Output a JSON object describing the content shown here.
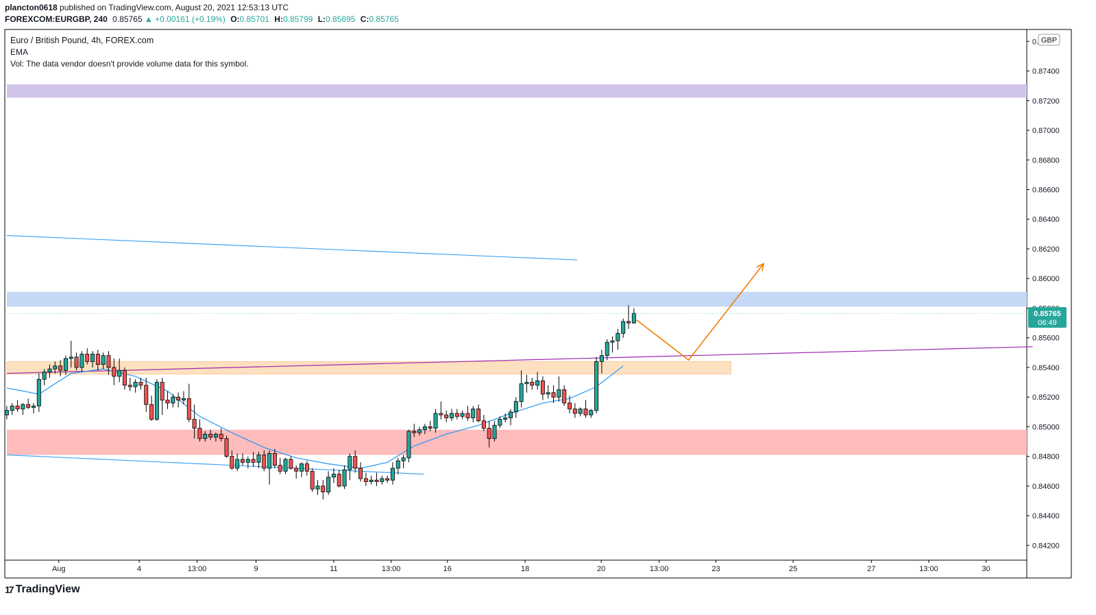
{
  "header": {
    "user": "plancton0618",
    "published_text": "published on TradingView.com, August 20, 2021 12:53:13 UTC",
    "symbol": "FOREXCOM:EURGBP, 240",
    "last": "0.85765",
    "change": "▲ +0.00161 (+0.19%)",
    "o_label": "O:",
    "o": "0.85701",
    "h_label": "H:",
    "h": "0.85799",
    "l_label": "L:",
    "l": "0.85695",
    "c_label": "C:",
    "c": "0.85765"
  },
  "legend": {
    "title": "Euro / British Pound, 4h, FOREX.com",
    "ema": "EMA",
    "vol": "Vol: The data vendor doesn't provide volume data for this symbol."
  },
  "price_scale": {
    "currency": "GBP",
    "current_price": "0.85765",
    "countdown": "06:49"
  },
  "footer": {
    "brand": "TradingView"
  },
  "colors": {
    "up": "#26a69a",
    "down": "#ef5350",
    "ema": "#2196f3",
    "trendline": "#42a5f5",
    "purple_line": "#9c27b0",
    "projection": "#f57c00",
    "zone_purple": "#d1c4e9",
    "zone_blue": "#c5d9f7",
    "zone_orange": "#fde0c0",
    "zone_red": "#ffbcbc"
  },
  "chart_data": {
    "type": "candlestick",
    "ylim": [
      0.841,
      0.8768
    ],
    "x_ticks": [
      {
        "label": "Aug",
        "x": 9.7
      },
      {
        "label": "4",
        "x": 24.7
      },
      {
        "label": "13:00",
        "x": 35.5
      },
      {
        "label": "9",
        "x": 46.5
      },
      {
        "label": "11",
        "x": 61
      },
      {
        "label": "13:00",
        "x": 71.7
      },
      {
        "label": "16",
        "x": 82.2
      },
      {
        "label": "18",
        "x": 96.7
      },
      {
        "label": "20",
        "x": 110.9
      },
      {
        "label": "13:00",
        "x": 121.7
      },
      {
        "label": "23",
        "x": 132.3
      },
      {
        "label": "25",
        "x": 146.7
      },
      {
        "label": "27",
        "x": 161.3
      },
      {
        "label": "13:00",
        "x": 172
      },
      {
        "label": "30",
        "x": 182.7
      }
    ],
    "y_ticks": [
      "0.87600",
      "0.87400",
      "0.87200",
      "0.87000",
      "0.86800",
      "0.86600",
      "0.86400",
      "0.86200",
      "0.86000",
      "0.85800",
      "0.85600",
      "0.85400",
      "0.85200",
      "0.85000",
      "0.84800",
      "0.84600",
      "0.84400",
      "0.84200"
    ],
    "y_tick_values": [
      0.876,
      0.874,
      0.872,
      0.87,
      0.868,
      0.866,
      0.864,
      0.862,
      0.86,
      0.858,
      0.856,
      0.854,
      0.852,
      0.85,
      0.848,
      0.846,
      0.844,
      0.842
    ],
    "candles": [
      [
        0.8508,
        0.8514,
        0.8505,
        0.8511
      ],
      [
        0.8511,
        0.8516,
        0.8508,
        0.8514
      ],
      [
        0.8514,
        0.8518,
        0.851,
        0.8512
      ],
      [
        0.8512,
        0.8516,
        0.8508,
        0.8515
      ],
      [
        0.8515,
        0.8519,
        0.8512,
        0.8513
      ],
      [
        0.8513,
        0.8516,
        0.8509,
        0.8514
      ],
      [
        0.8514,
        0.8536,
        0.851,
        0.8532
      ],
      [
        0.8532,
        0.8539,
        0.8528,
        0.8537
      ],
      [
        0.8537,
        0.8542,
        0.8533,
        0.8539
      ],
      [
        0.8539,
        0.8544,
        0.8536,
        0.8541
      ],
      [
        0.8541,
        0.8545,
        0.8534,
        0.8538
      ],
      [
        0.8538,
        0.8548,
        0.8535,
        0.8546
      ],
      [
        0.8546,
        0.8558,
        0.854,
        0.8547
      ],
      [
        0.8547,
        0.855,
        0.8538,
        0.854
      ],
      [
        0.854,
        0.8551,
        0.8537,
        0.8549
      ],
      [
        0.8549,
        0.8553,
        0.8542,
        0.8544
      ],
      [
        0.8544,
        0.8551,
        0.854,
        0.8549
      ],
      [
        0.8549,
        0.8552,
        0.8538,
        0.8542
      ],
      [
        0.8542,
        0.855,
        0.8539,
        0.8548
      ],
      [
        0.8548,
        0.8551,
        0.8535,
        0.854
      ],
      [
        0.854,
        0.8546,
        0.8528,
        0.8534
      ],
      [
        0.8534,
        0.8546,
        0.853,
        0.8538
      ],
      [
        0.8538,
        0.854,
        0.8525,
        0.8528
      ],
      [
        0.8528,
        0.8533,
        0.8524,
        0.8527
      ],
      [
        0.8527,
        0.8532,
        0.8523,
        0.853
      ],
      [
        0.853,
        0.8533,
        0.8525,
        0.8528
      ],
      [
        0.8528,
        0.8533,
        0.851,
        0.8515
      ],
      [
        0.8515,
        0.8521,
        0.8504,
        0.8505
      ],
      [
        0.8505,
        0.8532,
        0.8504,
        0.853
      ],
      [
        0.853,
        0.8533,
        0.8508,
        0.8518
      ],
      [
        0.8518,
        0.8524,
        0.8512,
        0.8516
      ],
      [
        0.8516,
        0.8522,
        0.8513,
        0.852
      ],
      [
        0.852,
        0.8523,
        0.8513,
        0.8518
      ],
      [
        0.8518,
        0.8524,
        0.8515,
        0.8519
      ],
      [
        0.8519,
        0.8529,
        0.8503,
        0.8505
      ],
      [
        0.8505,
        0.8515,
        0.8492,
        0.8499
      ],
      [
        0.8499,
        0.8505,
        0.849,
        0.8492
      ],
      [
        0.8492,
        0.8497,
        0.849,
        0.8495
      ],
      [
        0.8495,
        0.8498,
        0.8491,
        0.8493
      ],
      [
        0.8493,
        0.8496,
        0.849,
        0.8495
      ],
      [
        0.8495,
        0.8499,
        0.849,
        0.8492
      ],
      [
        0.8492,
        0.8494,
        0.8479,
        0.848
      ],
      [
        0.848,
        0.8484,
        0.8471,
        0.8472
      ],
      [
        0.8472,
        0.8482,
        0.847,
        0.8478
      ],
      [
        0.8478,
        0.8482,
        0.8474,
        0.8476
      ],
      [
        0.8476,
        0.848,
        0.8472,
        0.8478
      ],
      [
        0.8478,
        0.8483,
        0.8473,
        0.8476
      ],
      [
        0.8476,
        0.8483,
        0.8472,
        0.8481
      ],
      [
        0.8481,
        0.8484,
        0.847,
        0.8472
      ],
      [
        0.8472,
        0.8484,
        0.8461,
        0.8482
      ],
      [
        0.8482,
        0.8485,
        0.8472,
        0.8474
      ],
      [
        0.8474,
        0.8479,
        0.8468,
        0.847
      ],
      [
        0.847,
        0.8479,
        0.8468,
        0.8478
      ],
      [
        0.8478,
        0.848,
        0.8471,
        0.8472
      ],
      [
        0.8472,
        0.8474,
        0.8465,
        0.847
      ],
      [
        0.847,
        0.8476,
        0.8466,
        0.8475
      ],
      [
        0.8475,
        0.8477,
        0.8467,
        0.847
      ],
      [
        0.847,
        0.8472,
        0.8456,
        0.8458
      ],
      [
        0.8458,
        0.8464,
        0.8454,
        0.846
      ],
      [
        0.846,
        0.8464,
        0.8451,
        0.8456
      ],
      [
        0.8456,
        0.847,
        0.8454,
        0.8466
      ],
      [
        0.8466,
        0.8472,
        0.8462,
        0.8468
      ],
      [
        0.8468,
        0.8471,
        0.8459,
        0.846
      ],
      [
        0.846,
        0.8474,
        0.8458,
        0.8471
      ],
      [
        0.8471,
        0.8482,
        0.8464,
        0.848
      ],
      [
        0.848,
        0.8484,
        0.8469,
        0.8472
      ],
      [
        0.8472,
        0.8476,
        0.8463,
        0.8465
      ],
      [
        0.8465,
        0.8469,
        0.846,
        0.8463
      ],
      [
        0.8463,
        0.8467,
        0.8461,
        0.8464
      ],
      [
        0.8464,
        0.8469,
        0.846,
        0.8463
      ],
      [
        0.8463,
        0.8467,
        0.8461,
        0.8465
      ],
      [
        0.8465,
        0.8467,
        0.8462,
        0.8464
      ],
      [
        0.8464,
        0.8476,
        0.8461,
        0.8472
      ],
      [
        0.8472,
        0.8479,
        0.8468,
        0.8477
      ],
      [
        0.8477,
        0.8481,
        0.8472,
        0.8479
      ],
      [
        0.8479,
        0.8498,
        0.8476,
        0.8497
      ],
      [
        0.8497,
        0.8502,
        0.8493,
        0.8496
      ],
      [
        0.8496,
        0.85,
        0.8494,
        0.8498
      ],
      [
        0.8498,
        0.8502,
        0.8495,
        0.85
      ],
      [
        0.85,
        0.8504,
        0.8497,
        0.8499
      ],
      [
        0.8499,
        0.8512,
        0.8496,
        0.8509
      ],
      [
        0.8509,
        0.8517,
        0.8505,
        0.8508
      ],
      [
        0.8508,
        0.8511,
        0.8503,
        0.8506
      ],
      [
        0.8506,
        0.8512,
        0.8504,
        0.8509
      ],
      [
        0.8509,
        0.8512,
        0.8505,
        0.8507
      ],
      [
        0.8507,
        0.8511,
        0.8505,
        0.8509
      ],
      [
        0.8509,
        0.8514,
        0.8504,
        0.8506
      ],
      [
        0.8506,
        0.8514,
        0.8503,
        0.8512
      ],
      [
        0.8512,
        0.8515,
        0.8503,
        0.8504
      ],
      [
        0.8504,
        0.8508,
        0.8497,
        0.8499
      ],
      [
        0.8499,
        0.8504,
        0.8486,
        0.8492
      ],
      [
        0.8492,
        0.8504,
        0.849,
        0.8501
      ],
      [
        0.8501,
        0.8507,
        0.8499,
        0.8505
      ],
      [
        0.8505,
        0.8509,
        0.8503,
        0.8506
      ],
      [
        0.8506,
        0.8512,
        0.8501,
        0.851
      ],
      [
        0.851,
        0.852,
        0.8506,
        0.8517
      ],
      [
        0.8517,
        0.8538,
        0.8513,
        0.8529
      ],
      [
        0.8529,
        0.8535,
        0.8523,
        0.853
      ],
      [
        0.853,
        0.8533,
        0.8525,
        0.8528
      ],
      [
        0.8528,
        0.8537,
        0.8525,
        0.8531
      ],
      [
        0.8531,
        0.8534,
        0.8518,
        0.8522
      ],
      [
        0.8522,
        0.8528,
        0.8519,
        0.8523
      ],
      [
        0.8523,
        0.8528,
        0.8516,
        0.852
      ],
      [
        0.852,
        0.8534,
        0.8517,
        0.8525
      ],
      [
        0.8525,
        0.8528,
        0.8514,
        0.8516
      ],
      [
        0.8516,
        0.8521,
        0.8509,
        0.8512
      ],
      [
        0.8512,
        0.8516,
        0.8506,
        0.8509
      ],
      [
        0.8509,
        0.8513,
        0.8507,
        0.8512
      ],
      [
        0.8512,
        0.8518,
        0.8506,
        0.8508
      ],
      [
        0.8508,
        0.8512,
        0.8506,
        0.8511
      ],
      [
        0.8511,
        0.8547,
        0.8509,
        0.8544
      ],
      [
        0.8544,
        0.8552,
        0.8536,
        0.8548
      ],
      [
        0.8548,
        0.8559,
        0.8545,
        0.8557
      ],
      [
        0.8557,
        0.8561,
        0.855,
        0.8558
      ],
      [
        0.8558,
        0.8566,
        0.8552,
        0.8563
      ],
      [
        0.8563,
        0.8573,
        0.856,
        0.8571
      ],
      [
        0.8571,
        0.8582,
        0.8566,
        0.857
      ],
      [
        0.857,
        0.85799,
        0.85695,
        0.85765
      ]
    ],
    "ema": [
      [
        0,
        0.85262
      ],
      [
        6,
        0.8522
      ],
      [
        12,
        0.8536
      ],
      [
        18,
        0.8539
      ],
      [
        24,
        0.8534
      ],
      [
        30,
        0.8524
      ],
      [
        36,
        0.8507
      ],
      [
        42,
        0.8496
      ],
      [
        48,
        0.8486
      ],
      [
        54,
        0.8479
      ],
      [
        60,
        0.8475
      ],
      [
        66,
        0.8472
      ],
      [
        71,
        0.8476
      ],
      [
        76,
        0.8487
      ],
      [
        82,
        0.8495
      ],
      [
        88,
        0.8501
      ],
      [
        94,
        0.8509
      ],
      [
        100,
        0.8516
      ],
      [
        105,
        0.8519
      ],
      [
        110,
        0.8527
      ],
      [
        115,
        0.8541
      ]
    ],
    "trendline_upper": [
      [
        0,
        0.8629
      ],
      [
        106.4,
        0.86125
      ]
    ],
    "trendline_lower": [
      [
        0,
        0.8481
      ],
      [
        77.8,
        0.8468
      ]
    ],
    "purple_line": [
      [
        0,
        0.8536
      ],
      [
        191.4,
        0.8554
      ]
    ],
    "projection": [
      [
        117.5,
        0.8572
      ],
      [
        127.2,
        0.8545
      ],
      [
        141.2,
        0.861
      ]
    ],
    "zones": [
      {
        "name": "zone-purple",
        "y0": 0.8722,
        "y1": 0.8731,
        "x0": 0,
        "x1": 191.4
      },
      {
        "name": "zone-blue",
        "y0": 0.8581,
        "y1": 0.8591,
        "x0": 0,
        "x1": 191.4
      },
      {
        "name": "zone-orange",
        "y0": 0.85355,
        "y1": 0.8544,
        "x0": 0,
        "x1": 135.1
      },
      {
        "name": "zone-red",
        "y0": 0.8481,
        "y1": 0.8498,
        "x0": 0,
        "x1": 191.4
      }
    ]
  }
}
